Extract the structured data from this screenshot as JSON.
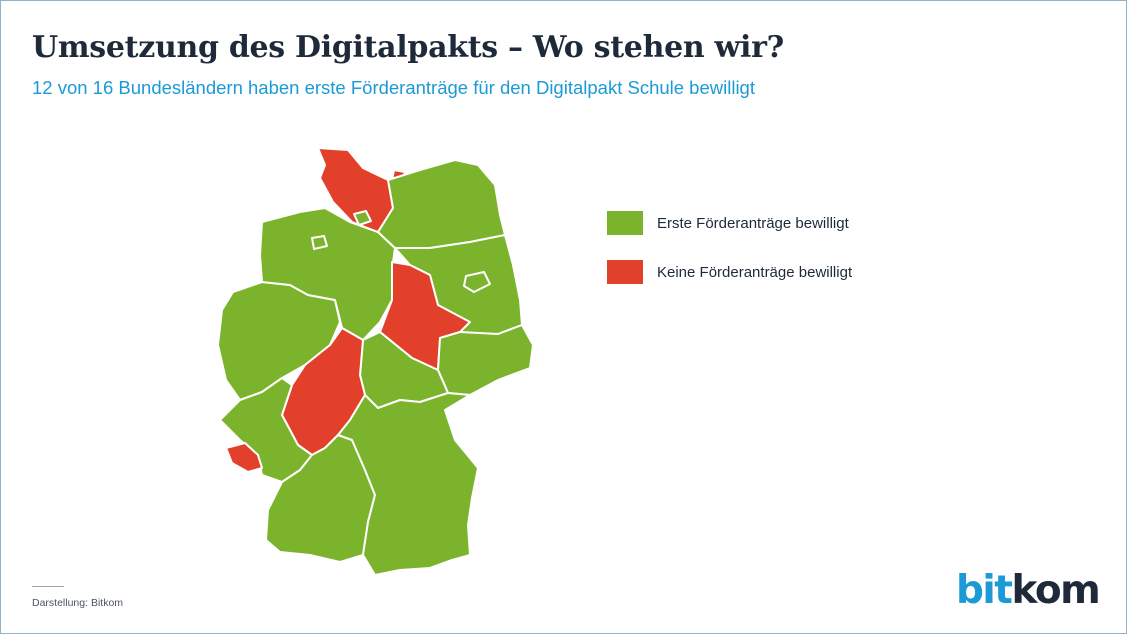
{
  "header": {
    "title": "Umsetzung des Digitalpakts – Wo stehen wir?",
    "subtitle": "12 von 16 Bundesländern haben erste Förderanträge für den Digitalpakt Schule bewilligt"
  },
  "colors": {
    "approved": "#7cb32c",
    "not_approved": "#e2402b",
    "accent": "#1b9ad6",
    "text": "#1e2a3a"
  },
  "legend": [
    {
      "label": "Erste Förderanträge bewilligt",
      "status": "approved"
    },
    {
      "label": "Keine Förderanträge bewilligt",
      "status": "not_approved"
    }
  ],
  "states": [
    {
      "name": "Schleswig-Holstein",
      "status": "not_approved"
    },
    {
      "name": "Hamburg",
      "status": "approved"
    },
    {
      "name": "Mecklenburg-Vorpommern",
      "status": "approved"
    },
    {
      "name": "Bremen",
      "status": "approved"
    },
    {
      "name": "Niedersachsen",
      "status": "approved"
    },
    {
      "name": "Berlin",
      "status": "approved"
    },
    {
      "name": "Brandenburg",
      "status": "approved"
    },
    {
      "name": "Sachsen-Anhalt",
      "status": "not_approved"
    },
    {
      "name": "Nordrhein-Westfalen",
      "status": "approved"
    },
    {
      "name": "Hessen",
      "status": "not_approved"
    },
    {
      "name": "Thüringen",
      "status": "approved"
    },
    {
      "name": "Sachsen",
      "status": "approved"
    },
    {
      "name": "Rheinland-Pfalz",
      "status": "approved"
    },
    {
      "name": "Saarland",
      "status": "not_approved"
    },
    {
      "name": "Baden-Württemberg",
      "status": "approved"
    },
    {
      "name": "Bayern",
      "status": "approved"
    }
  ],
  "footer": {
    "source": "Darstellung: Bitkom",
    "logo_part1": "bit",
    "logo_part2": "kom"
  }
}
